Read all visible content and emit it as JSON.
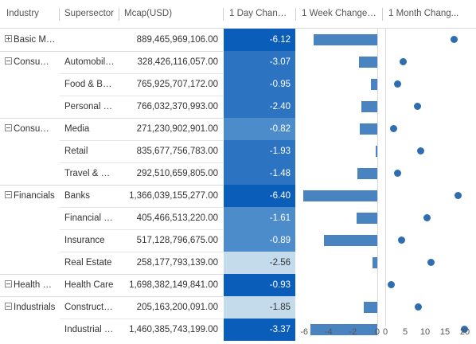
{
  "columns": {
    "industry": "Industry",
    "supersector": "Supersector",
    "mcap": "Mcap(USD)",
    "day": "1 Day Change...",
    "week": "1 Week Change ...",
    "month": "1 Month Chang..."
  },
  "colors": {
    "heat_dark": "#0a5db8",
    "heat_mid": "#2c73c1",
    "heat_light": "#4c8cca",
    "heat_pale": "#c3dbea",
    "bar": "#4a84c0",
    "dot": "#2e6db0"
  },
  "rows": [
    {
      "industry": "Basic Materials",
      "expander": "plus",
      "supersector": "",
      "mcap": "889,465,969,106.00",
      "day": "-6.12",
      "week": -5.2,
      "month": 17.3
    },
    {
      "industry": "Consume...",
      "expander": "minus",
      "supersector": "Automobile...",
      "mcap": "328,426,116,057.00",
      "day": "-3.07",
      "week": -1.5,
      "month": 4.5
    },
    {
      "industry": "",
      "expander": "",
      "supersector": "Food & Bev...",
      "mcap": "765,925,707,172.00",
      "day": "-0.95",
      "week": -0.5,
      "month": 3.0
    },
    {
      "industry": "",
      "expander": "",
      "supersector": "Personal & ...",
      "mcap": "766,032,370,993.00",
      "day": "-2.40",
      "week": -1.3,
      "month": 8.0
    },
    {
      "industry": "Consume...",
      "expander": "minus",
      "supersector": "Media",
      "mcap": "271,230,902,901.00",
      "day": "-0.82",
      "week": -1.4,
      "month": 2.0
    },
    {
      "industry": "",
      "expander": "",
      "supersector": "Retail",
      "mcap": "835,677,756,783.00",
      "day": "-1.93",
      "week": -0.1,
      "month": 8.9
    },
    {
      "industry": "",
      "expander": "",
      "supersector": "Travel & Lei...",
      "mcap": "292,510,659,805.00",
      "day": "-1.48",
      "week": -1.6,
      "month": 3.0
    },
    {
      "industry": "Financials",
      "expander": "minus",
      "supersector": "Banks",
      "mcap": "1,366,039,155,277.00",
      "day": "-6.40",
      "week": -6.1,
      "month": 18.3
    },
    {
      "industry": "",
      "expander": "",
      "supersector": "Financial Se...",
      "mcap": "405,466,513,220.00",
      "day": "-1.61",
      "week": -1.7,
      "month": 10.5
    },
    {
      "industry": "",
      "expander": "",
      "supersector": "Insurance",
      "mcap": "517,128,796,675.00",
      "day": "-0.89",
      "week": -4.4,
      "month": 4.0
    },
    {
      "industry": "",
      "expander": "",
      "supersector": "Real Estate",
      "mcap": "258,177,793,139.00",
      "day": "-2.56",
      "week": -0.4,
      "month": 11.5
    },
    {
      "industry": "Health Ca...",
      "expander": "minus",
      "supersector": "Health Care",
      "mcap": "1,698,382,149,841.00",
      "day": "-0.93",
      "week": 0.0,
      "month": 1.5
    },
    {
      "industry": "Industrials",
      "expander": "minus",
      "supersector": "Constructio...",
      "mcap": "205,163,200,091.00",
      "day": "-1.85",
      "week": -1.1,
      "month": 8.3
    },
    {
      "industry": "",
      "expander": "",
      "supersector": "Industrial G...",
      "mcap": "1,460,385,743,199.00",
      "day": "-3.37",
      "week": -5.5,
      "month": 19.8
    }
  ],
  "heat_levels": [
    "dark",
    "mid",
    "mid",
    "mid",
    "light",
    "mid",
    "mid",
    "dark",
    "light",
    "light",
    "pale",
    "dark",
    "pale",
    "dark"
  ],
  "week_axis": {
    "min": -6.6,
    "max": 0.4,
    "ticks": [
      "-6",
      "-4",
      "-2",
      "0"
    ],
    "tick_values": [
      -6,
      -4,
      -2,
      0
    ]
  },
  "month_axis": {
    "min": -0.4,
    "max": 20.4,
    "ticks": [
      "0",
      "5",
      "10",
      "15",
      "20"
    ],
    "tick_values": [
      0,
      5,
      10,
      15,
      20
    ]
  }
}
